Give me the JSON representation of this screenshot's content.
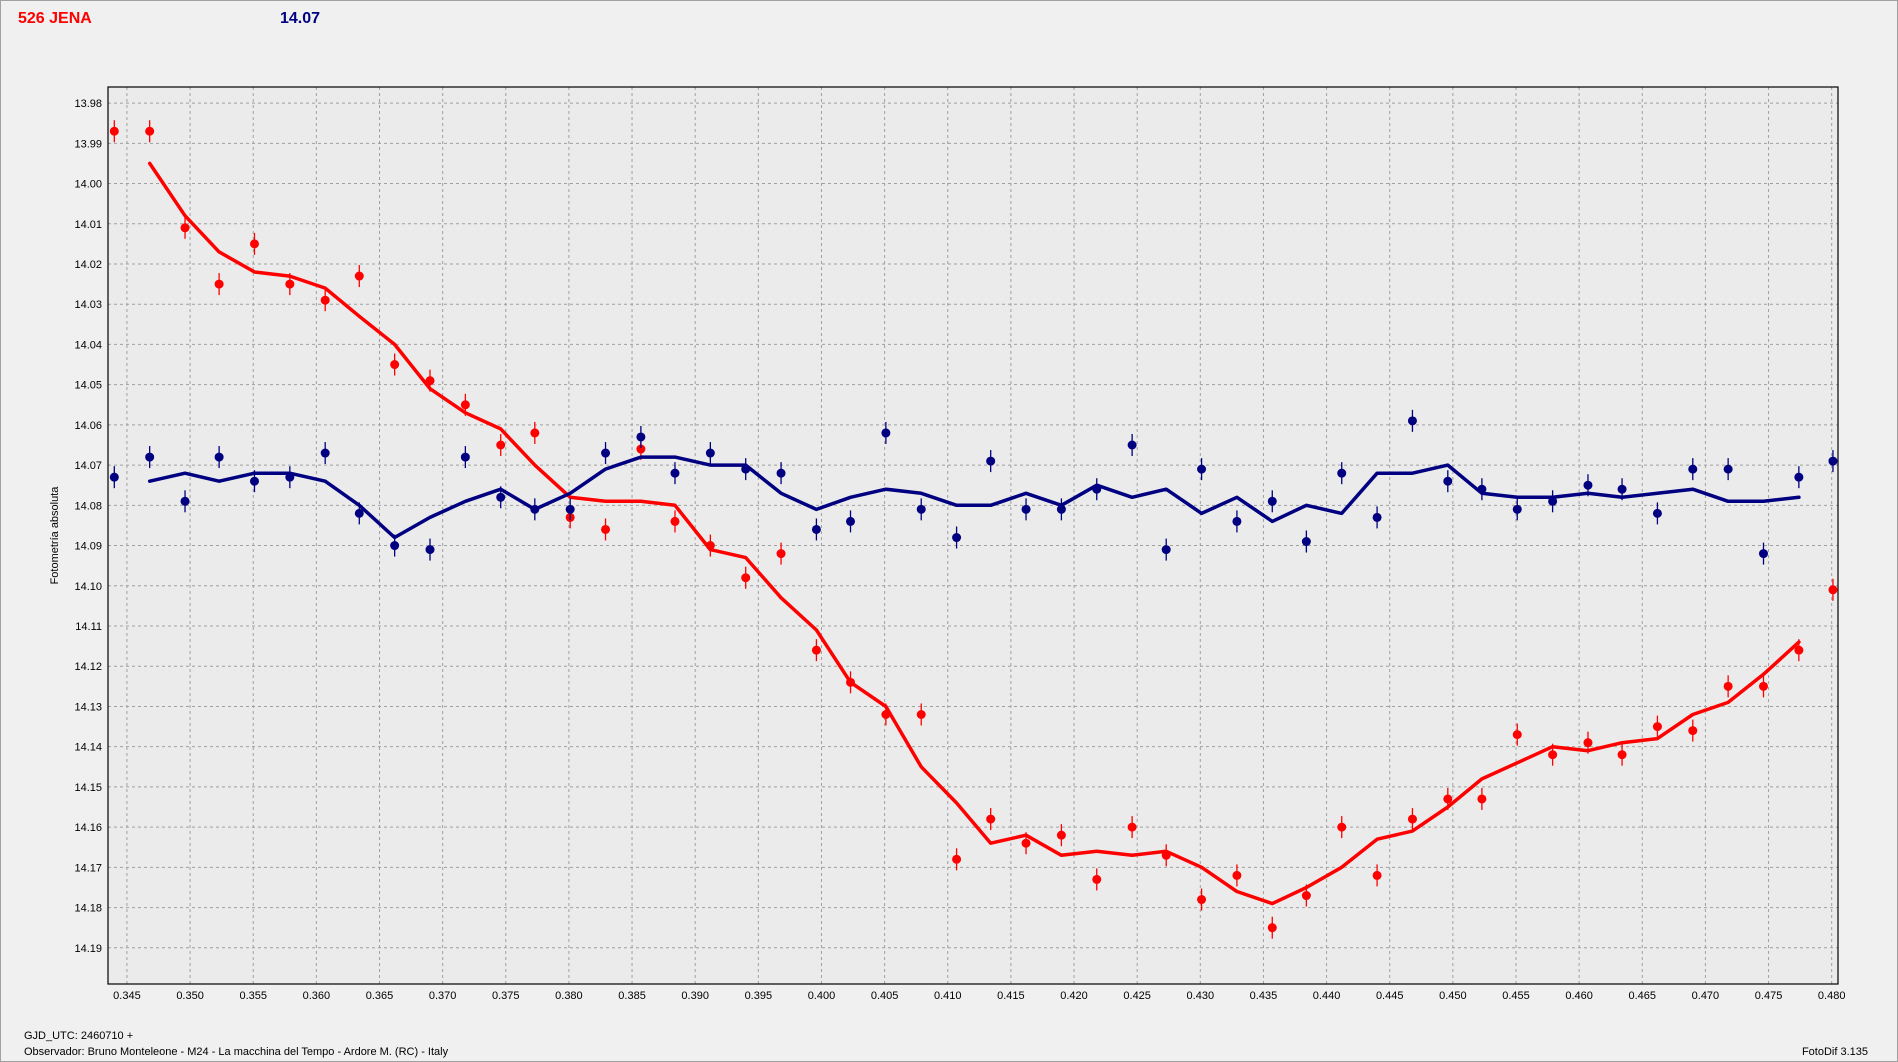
{
  "header": {
    "title": "526 JENA",
    "value": "14.07"
  },
  "footer": {
    "gjd": "GJD_UTC: 2460710 +",
    "observer": "Observador: Bruno Monteleone - M24 - La macchina del Tempo - Ardore M. (RC) - Italy",
    "software": "FotoDif 3.135"
  },
  "colors": {
    "target": "#ff0000",
    "comparison": "#000080",
    "grid": "#a0a0a0",
    "plot_background": "#ebebeb"
  },
  "chart_data": {
    "type": "scatter",
    "title": "",
    "xlabel": "",
    "ylabel": "Fotometría absoluta",
    "xlim": [
      0.3435,
      0.4805
    ],
    "ylim": [
      13.976,
      14.199
    ],
    "y_inverted": true,
    "grid": true,
    "x_ticks": [
      "0.345",
      "0.350",
      "0.355",
      "0.360",
      "0.365",
      "0.370",
      "0.375",
      "0.380",
      "0.385",
      "0.390",
      "0.395",
      "0.400",
      "0.405",
      "0.410",
      "0.415",
      "0.420",
      "0.425",
      "0.430",
      "0.435",
      "0.440",
      "0.445",
      "0.450",
      "0.455",
      "0.460",
      "0.465",
      "0.470",
      "0.475",
      "0.480"
    ],
    "y_ticks": [
      "13.98",
      "13.99",
      "14.00",
      "14.01",
      "14.02",
      "14.03",
      "14.04",
      "14.05",
      "14.06",
      "14.07",
      "14.08",
      "14.09",
      "14.10",
      "14.11",
      "14.12",
      "14.13",
      "14.14",
      "14.15",
      "14.16",
      "14.17",
      "14.18",
      "14.19"
    ],
    "series": [
      {
        "role": "target",
        "x": [
          0.344,
          0.3468,
          0.3496,
          0.3523,
          0.3551,
          0.3579,
          0.3607,
          0.3634,
          0.3662,
          0.369,
          0.3718,
          0.3746,
          0.3773,
          0.3801,
          0.3829,
          0.3857,
          0.3884,
          0.3912,
          0.394,
          0.3968,
          0.3996,
          0.4023,
          0.4051,
          0.4079,
          0.4107,
          0.4134,
          0.4162,
          0.419,
          0.4218,
          0.4246,
          0.4273,
          0.4301,
          0.4329,
          0.4357,
          0.4384,
          0.4412,
          0.444,
          0.4468,
          0.4496,
          0.4523,
          0.4551,
          0.4579,
          0.4607,
          0.4634,
          0.4662,
          0.469,
          0.4718,
          0.4746,
          0.4774,
          0.4801
        ],
        "y": [
          13.987,
          13.987,
          14.011,
          14.025,
          14.015,
          14.025,
          14.029,
          14.023,
          14.045,
          14.049,
          14.055,
          14.065,
          14.062,
          14.083,
          14.086,
          14.066,
          14.084,
          14.09,
          14.098,
          14.092,
          14.116,
          14.124,
          14.132,
          14.132,
          14.168,
          14.158,
          14.164,
          14.162,
          14.173,
          14.16,
          14.167,
          14.178,
          14.172,
          14.185,
          14.177,
          14.16,
          14.172,
          14.158,
          14.153,
          14.153,
          14.137,
          14.142,
          14.139,
          14.142,
          14.135,
          14.136,
          14.125,
          14.125,
          14.116,
          14.101
        ],
        "fit_x": [
          0.3468,
          0.3496,
          0.3523,
          0.3551,
          0.3579,
          0.3607,
          0.3634,
          0.3662,
          0.369,
          0.3718,
          0.3746,
          0.3773,
          0.3801,
          0.3829,
          0.3857,
          0.3884,
          0.3912,
          0.394,
          0.3968,
          0.3996,
          0.4023,
          0.4051,
          0.4079,
          0.4107,
          0.4134,
          0.4162,
          0.419,
          0.4218,
          0.4246,
          0.4273,
          0.4301,
          0.4329,
          0.4357,
          0.4384,
          0.4412,
          0.444,
          0.4468,
          0.4496,
          0.4523,
          0.4551,
          0.4579,
          0.4607,
          0.4634,
          0.4662,
          0.469,
          0.4718,
          0.4746,
          0.4774
        ],
        "fit_y": [
          13.995,
          14.008,
          14.017,
          14.022,
          14.023,
          14.026,
          14.033,
          14.04,
          14.051,
          14.057,
          14.061,
          14.07,
          14.078,
          14.079,
          14.079,
          14.08,
          14.091,
          14.093,
          14.103,
          14.111,
          14.124,
          14.13,
          14.145,
          14.154,
          14.164,
          14.162,
          14.167,
          14.166,
          14.167,
          14.166,
          14.17,
          14.176,
          14.179,
          14.175,
          14.17,
          14.163,
          14.161,
          14.155,
          14.148,
          14.144,
          14.14,
          14.141,
          14.139,
          14.138,
          14.132,
          14.129,
          14.122,
          14.114
        ]
      },
      {
        "role": "comparison",
        "x": [
          0.344,
          0.3468,
          0.3496,
          0.3523,
          0.3551,
          0.3579,
          0.3607,
          0.3634,
          0.3662,
          0.369,
          0.3718,
          0.3746,
          0.3773,
          0.3801,
          0.3829,
          0.3857,
          0.3884,
          0.3912,
          0.394,
          0.3968,
          0.3996,
          0.4023,
          0.4051,
          0.4079,
          0.4107,
          0.4134,
          0.4162,
          0.419,
          0.4218,
          0.4246,
          0.4273,
          0.4301,
          0.4329,
          0.4357,
          0.4384,
          0.4412,
          0.444,
          0.4468,
          0.4496,
          0.4523,
          0.4551,
          0.4579,
          0.4607,
          0.4634,
          0.4662,
          0.469,
          0.4718,
          0.4746,
          0.4774,
          0.4801
        ],
        "y": [
          14.073,
          14.068,
          14.079,
          14.068,
          14.074,
          14.073,
          14.067,
          14.082,
          14.09,
          14.091,
          14.068,
          14.078,
          14.081,
          14.081,
          14.067,
          14.063,
          14.072,
          14.067,
          14.071,
          14.072,
          14.086,
          14.084,
          14.062,
          14.081,
          14.088,
          14.069,
          14.081,
          14.081,
          14.076,
          14.065,
          14.091,
          14.071,
          14.084,
          14.079,
          14.089,
          14.072,
          14.083,
          14.059,
          14.074,
          14.076,
          14.081,
          14.079,
          14.075,
          14.076,
          14.082,
          14.071,
          14.071,
          14.092,
          14.073,
          14.069
        ],
        "fit_x": [
          0.3468,
          0.3496,
          0.3523,
          0.3551,
          0.3579,
          0.3607,
          0.3634,
          0.3662,
          0.369,
          0.3718,
          0.3746,
          0.3773,
          0.3801,
          0.3829,
          0.3857,
          0.3884,
          0.3912,
          0.394,
          0.3968,
          0.3996,
          0.4023,
          0.4051,
          0.4079,
          0.4107,
          0.4134,
          0.4162,
          0.419,
          0.4218,
          0.4246,
          0.4273,
          0.4301,
          0.4329,
          0.4357,
          0.4384,
          0.4412,
          0.444,
          0.4468,
          0.4496,
          0.4523,
          0.4551,
          0.4579,
          0.4607,
          0.4634,
          0.4662,
          0.469,
          0.4718,
          0.4746,
          0.4774
        ],
        "fit_y": [
          14.074,
          14.072,
          14.074,
          14.072,
          14.072,
          14.074,
          14.08,
          14.088,
          14.083,
          14.079,
          14.076,
          14.081,
          14.077,
          14.071,
          14.068,
          14.068,
          14.07,
          14.07,
          14.077,
          14.081,
          14.078,
          14.076,
          14.077,
          14.08,
          14.08,
          14.077,
          14.08,
          14.075,
          14.078,
          14.076,
          14.082,
          14.078,
          14.084,
          14.08,
          14.082,
          14.072,
          14.072,
          14.07,
          14.077,
          14.078,
          14.078,
          14.077,
          14.078,
          14.077,
          14.076,
          14.079,
          14.079,
          14.078
        ]
      }
    ]
  }
}
